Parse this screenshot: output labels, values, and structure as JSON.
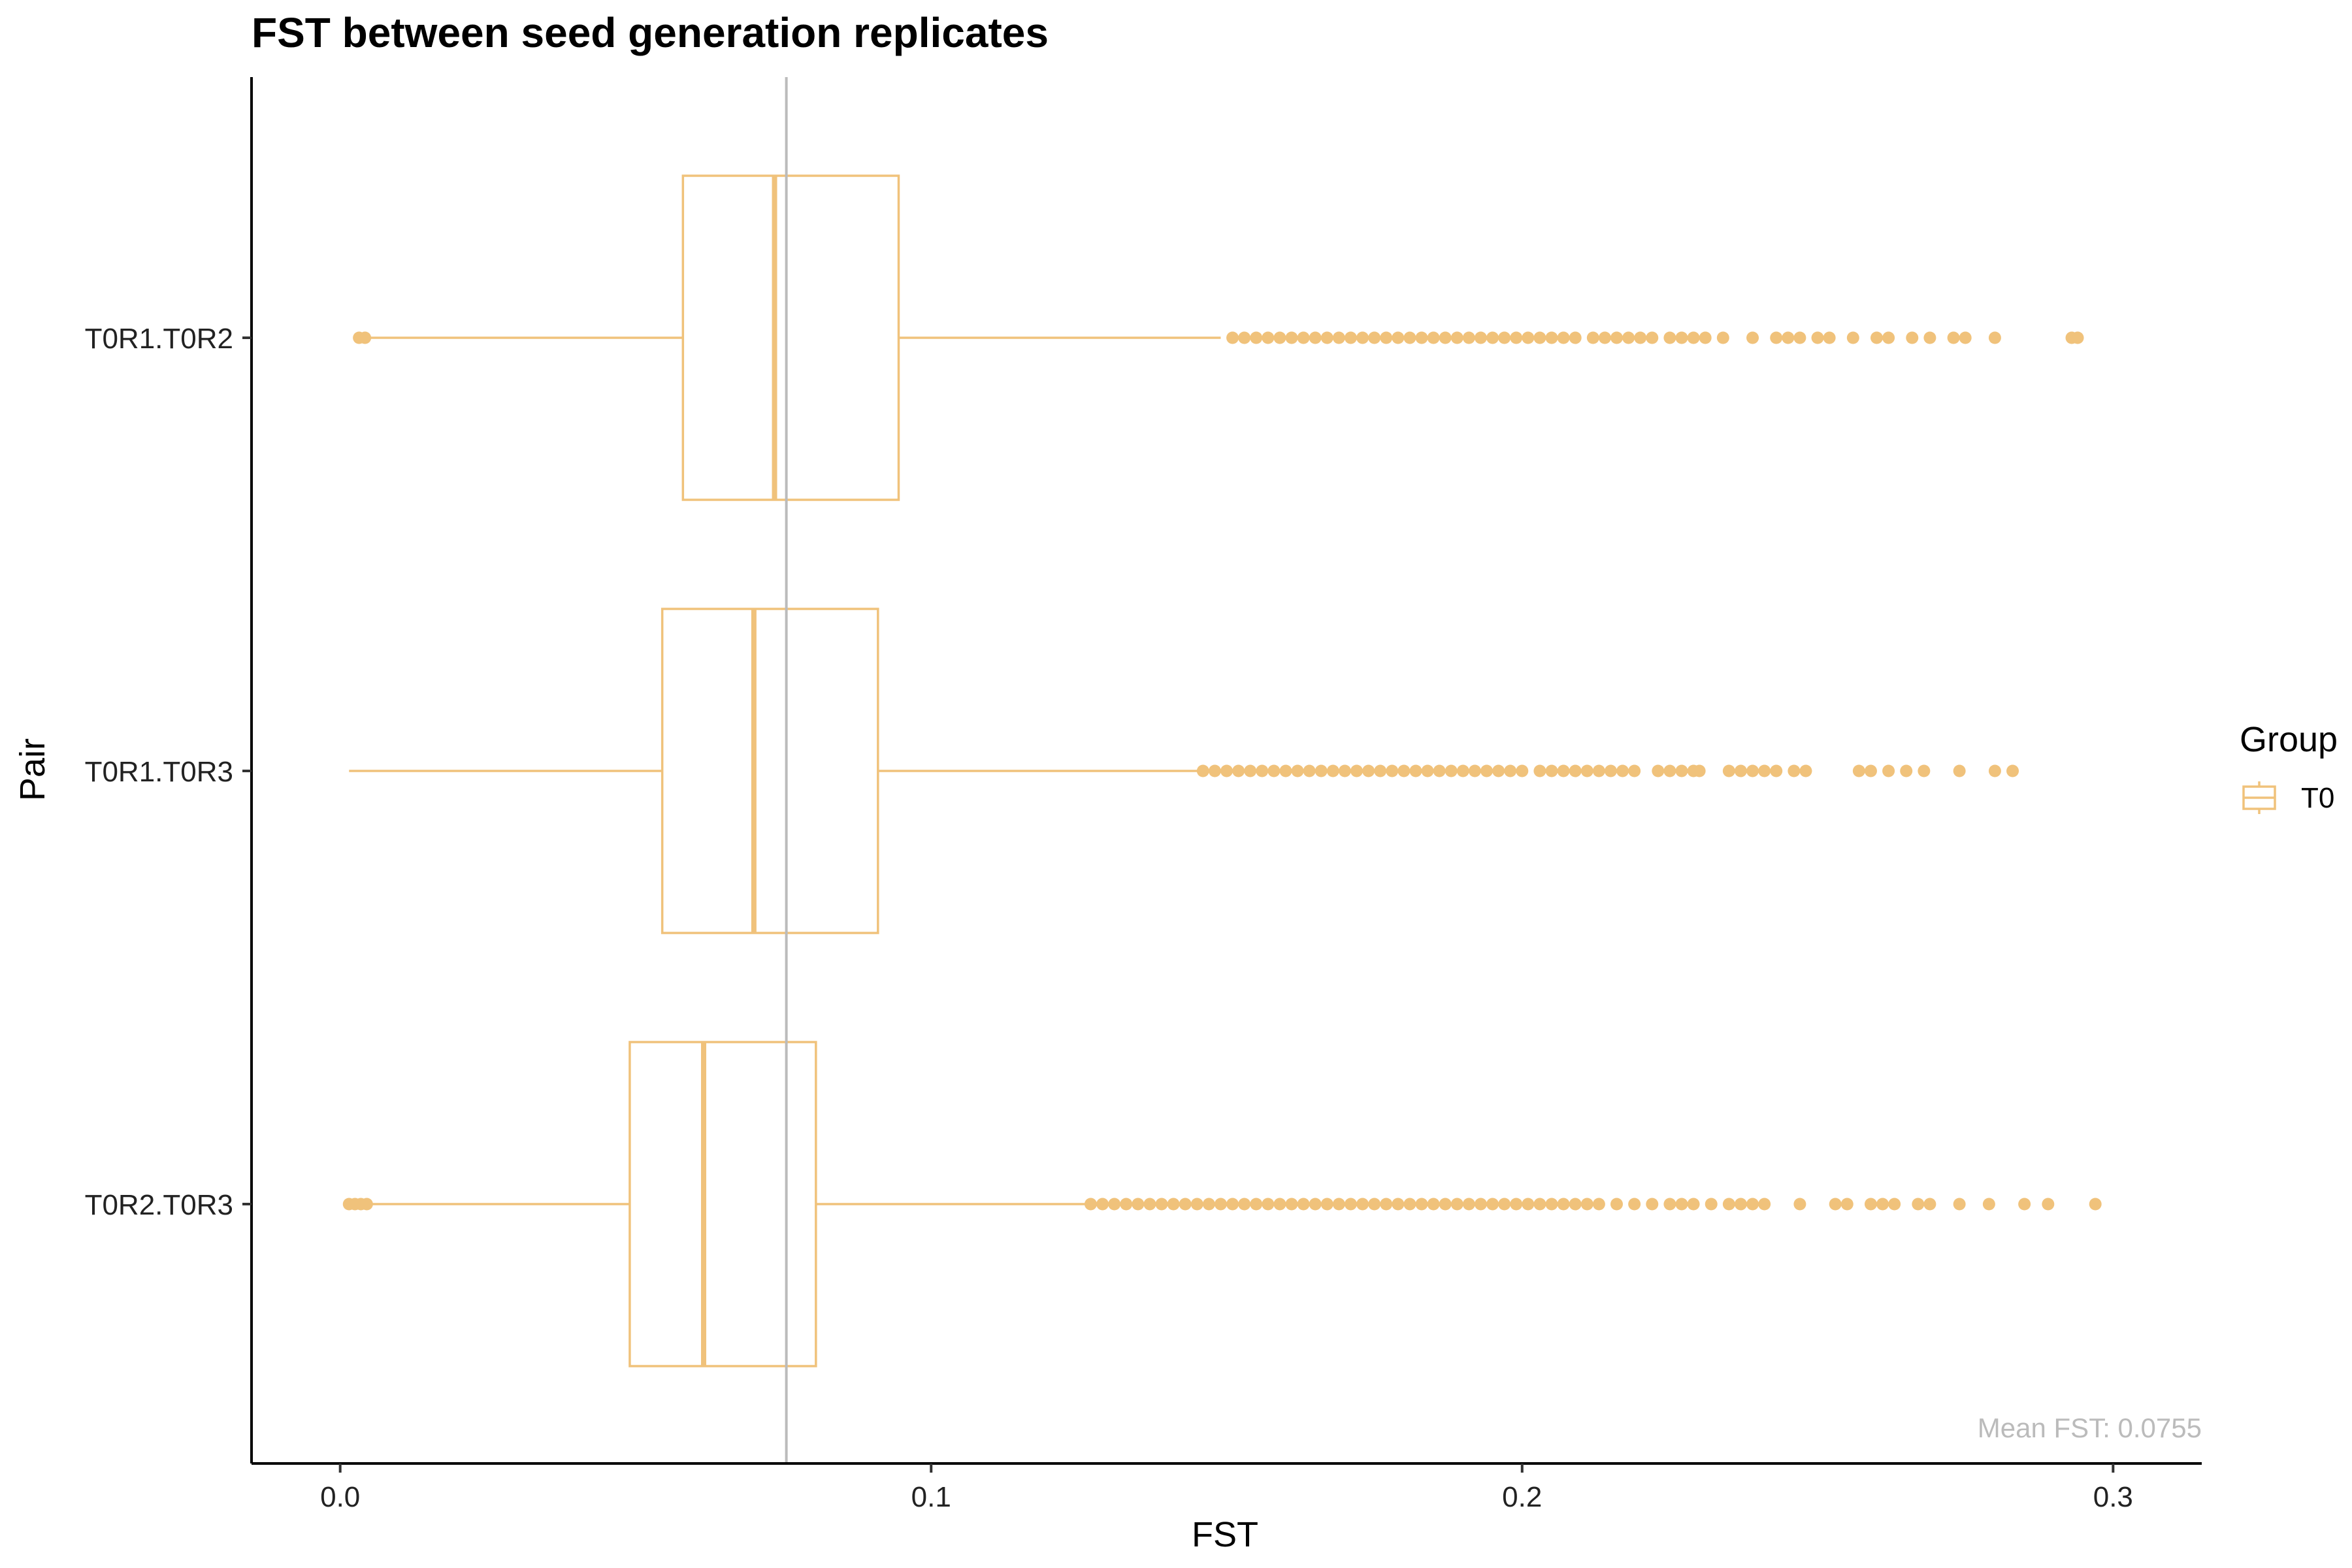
{
  "chart_data": {
    "type": "boxplot",
    "orientation": "horizontal",
    "title": "FST between seed generation replicates",
    "xlabel": "FST",
    "ylabel": "Pair",
    "xlim": [
      -0.015,
      0.315
    ],
    "x_ticks": [
      0.0,
      0.1,
      0.2,
      0.3
    ],
    "x_tick_labels": [
      "0.0",
      "0.1",
      "0.2",
      "0.3"
    ],
    "categories": [
      "T0R1.T0R2",
      "T0R1.T0R3",
      "T0R2.T0R3"
    ],
    "grid": false,
    "legend": {
      "title": "Group",
      "position": "right",
      "entries": [
        {
          "label": "T0",
          "color": "#F0C27B"
        }
      ]
    },
    "reference_line": {
      "x": 0.0755,
      "color": "#BBBBBB"
    },
    "annotation": {
      "text": "Mean FST: 0.0755",
      "color": "#BBBBBB",
      "position": "bottom-right"
    },
    "series": [
      {
        "group": "T0",
        "color": "#F0C27B",
        "boxes": [
          {
            "category": "T0R1.T0R2",
            "whisker_low": 0.0035,
            "q1": 0.058,
            "median": 0.0735,
            "q3": 0.0945,
            "whisker_high": 0.149,
            "outliers": [
              0.0032,
              0.0042,
              0.151,
              0.153,
              0.155,
              0.157,
              0.159,
              0.161,
              0.163,
              0.165,
              0.167,
              0.169,
              0.171,
              0.173,
              0.175,
              0.177,
              0.179,
              0.181,
              0.183,
              0.185,
              0.187,
              0.189,
              0.191,
              0.193,
              0.195,
              0.197,
              0.199,
              0.201,
              0.203,
              0.205,
              0.207,
              0.209,
              0.212,
              0.214,
              0.216,
              0.218,
              0.22,
              0.222,
              0.225,
              0.227,
              0.229,
              0.231,
              0.234,
              0.239,
              0.243,
              0.245,
              0.247,
              0.25,
              0.252,
              0.256,
              0.26,
              0.262,
              0.266,
              0.269,
              0.273,
              0.275,
              0.28,
              0.293,
              0.294
            ]
          },
          {
            "category": "T0R1.T0R3",
            "whisker_low": 0.0015,
            "q1": 0.0545,
            "median": 0.07,
            "q3": 0.091,
            "whisker_high": 0.145,
            "outliers": [
              0.146,
              0.148,
              0.15,
              0.152,
              0.154,
              0.156,
              0.158,
              0.16,
              0.162,
              0.164,
              0.166,
              0.168,
              0.17,
              0.172,
              0.174,
              0.176,
              0.178,
              0.18,
              0.182,
              0.184,
              0.186,
              0.188,
              0.19,
              0.192,
              0.194,
              0.196,
              0.198,
              0.2,
              0.203,
              0.205,
              0.207,
              0.209,
              0.211,
              0.213,
              0.215,
              0.217,
              0.219,
              0.223,
              0.225,
              0.227,
              0.229,
              0.23,
              0.235,
              0.237,
              0.239,
              0.241,
              0.243,
              0.246,
              0.248,
              0.257,
              0.259,
              0.262,
              0.265,
              0.268,
              0.274,
              0.28,
              0.283
            ]
          },
          {
            "category": "T0R2.T0R3",
            "whisker_low": 0.0045,
            "q1": 0.049,
            "median": 0.0615,
            "q3": 0.0805,
            "whisker_high": 0.126,
            "outliers": [
              0.0015,
              0.0025,
              0.0035,
              0.0045,
              0.127,
              0.129,
              0.131,
              0.133,
              0.135,
              0.137,
              0.139,
              0.141,
              0.143,
              0.145,
              0.147,
              0.149,
              0.151,
              0.153,
              0.155,
              0.157,
              0.159,
              0.161,
              0.163,
              0.165,
              0.167,
              0.169,
              0.171,
              0.173,
              0.175,
              0.177,
              0.179,
              0.181,
              0.183,
              0.185,
              0.187,
              0.189,
              0.191,
              0.193,
              0.195,
              0.197,
              0.199,
              0.201,
              0.203,
              0.205,
              0.207,
              0.209,
              0.211,
              0.213,
              0.216,
              0.219,
              0.222,
              0.225,
              0.227,
              0.229,
              0.232,
              0.235,
              0.237,
              0.239,
              0.241,
              0.247,
              0.253,
              0.255,
              0.259,
              0.261,
              0.263,
              0.267,
              0.269,
              0.274,
              0.279,
              0.285,
              0.289,
              0.297
            ]
          }
        ]
      }
    ]
  }
}
